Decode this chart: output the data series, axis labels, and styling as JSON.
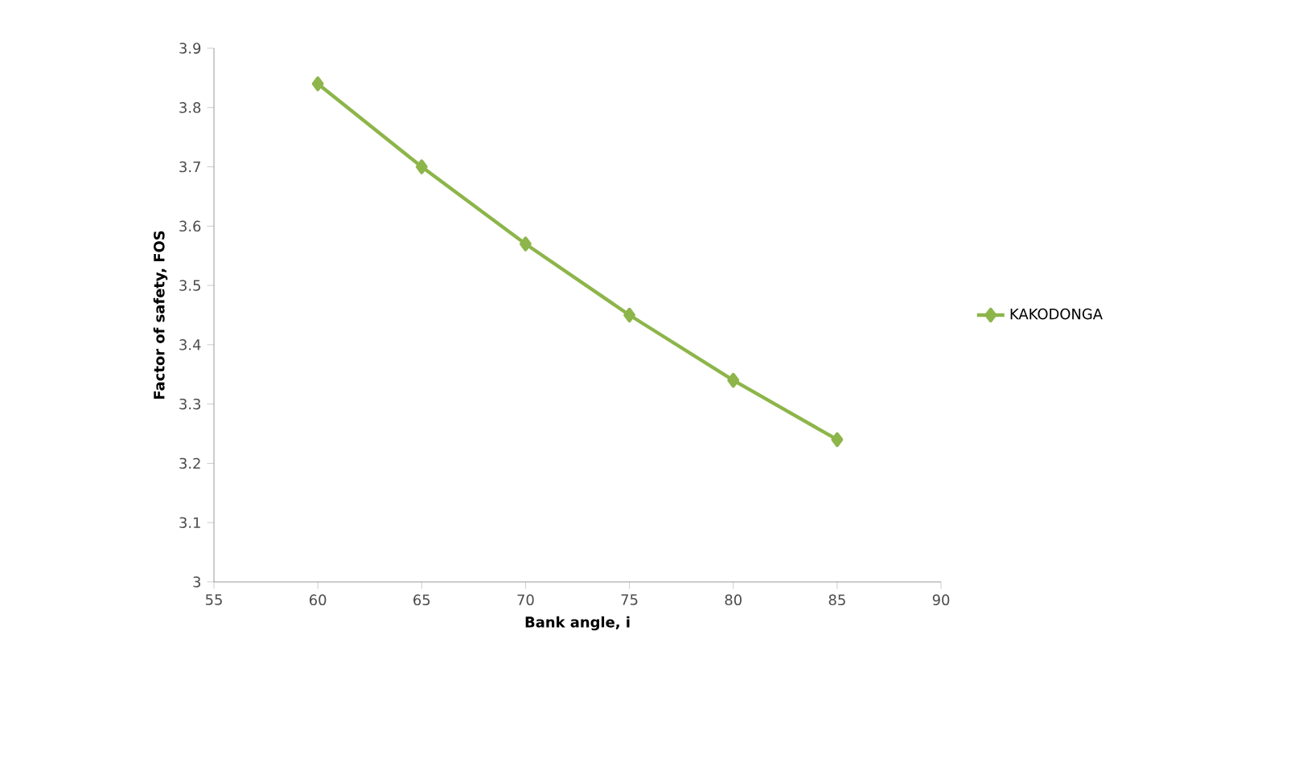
{
  "chart_data": {
    "type": "line",
    "xlabel": "Bank angle, i",
    "ylabel": "Factor of safety, FOS",
    "x": [
      60,
      65,
      70,
      75,
      80,
      85
    ],
    "series": [
      {
        "name": "KAKODONGA",
        "color": "#8db54a",
        "values": [
          3.84,
          3.7,
          3.57,
          3.45,
          3.34,
          3.24
        ]
      }
    ],
    "xlim": [
      55,
      90
    ],
    "xticks": [
      55,
      60,
      65,
      70,
      75,
      80,
      85,
      90
    ],
    "ylim": [
      3,
      3.9
    ],
    "yticks": [
      3,
      3.1,
      3.2,
      3.3,
      3.4,
      3.5,
      3.6,
      3.7,
      3.8,
      3.9
    ],
    "grid": false,
    "legend": "right",
    "marker": "diamond",
    "line_style": "solid"
  }
}
